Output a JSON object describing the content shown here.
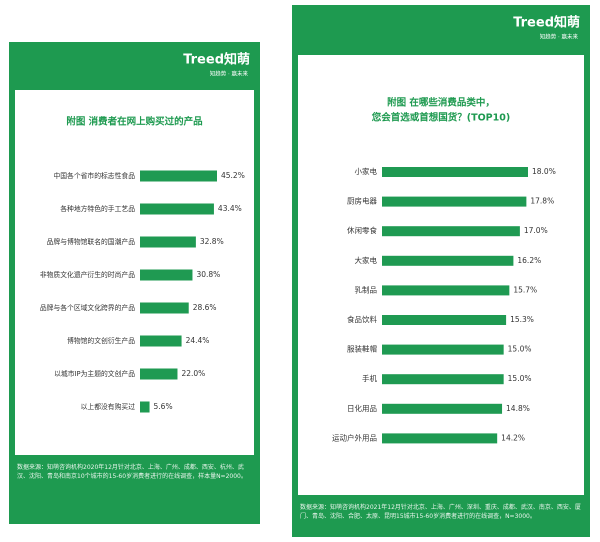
{
  "brand": {
    "logo": "Treed知萌",
    "tagline": "知趋势 · 赢未来"
  },
  "chart_data": [
    {
      "type": "bar",
      "orientation": "horizontal",
      "title": [
        "附图 消费者在网上购买过的产品"
      ],
      "categories": [
        "中国各个省市的标志性食品",
        "各种地方特色的手工艺品",
        "品牌与博物馆联名的国潮产品",
        "非物质文化遗产衍生的时尚产品",
        "品牌与各个区域文化跨界的产品",
        "博物馆的文创衍生产品",
        "以城市IP为主题的文创产品",
        "以上都没有购买过"
      ],
      "values": [
        45.2,
        43.4,
        32.8,
        30.8,
        28.6,
        24.4,
        22.0,
        5.6
      ],
      "value_labels": [
        "45.2%",
        "43.4%",
        "32.8%",
        "30.8%",
        "28.6%",
        "24.4%",
        "22.0%",
        "5.6%"
      ],
      "color": "#1f9a52",
      "source": "数据来源：知萌咨询机构2020年12月针对北京、上海、广州、成都、西安、杭州、武汉、沈阳、青岛和南京10个城市的15-60岁消费者进行的在线调查，样本量N=2000。"
    },
    {
      "type": "bar",
      "orientation": "horizontal",
      "title": [
        "附图 在哪些消费品类中，",
        "您会首选或首想国货？(TOP10)"
      ],
      "categories": [
        "小家电",
        "厨房电器",
        "休闲零食",
        "大家电",
        "乳制品",
        "食品饮料",
        "服装鞋帽",
        "手机",
        "日化用品",
        "运动户外用品"
      ],
      "values": [
        18.0,
        17.8,
        17.0,
        16.2,
        15.7,
        15.3,
        15.0,
        15.0,
        14.8,
        14.2
      ],
      "value_labels": [
        "18.0%",
        "17.8%",
        "17.0%",
        "16.2%",
        "15.7%",
        "15.3%",
        "15.0%",
        "15.0%",
        "14.8%",
        "14.2%"
      ],
      "color": "#1f9a52",
      "source": "数据来源：知萌咨询机构2021年12月针对北京、上海、广州、深圳、重庆、成都、武汉、南京、西安、厦门、青岛、沈阳、合肥、太原、昆明15城市15-60岁消费者进行的在线调查，N=3000。"
    }
  ]
}
